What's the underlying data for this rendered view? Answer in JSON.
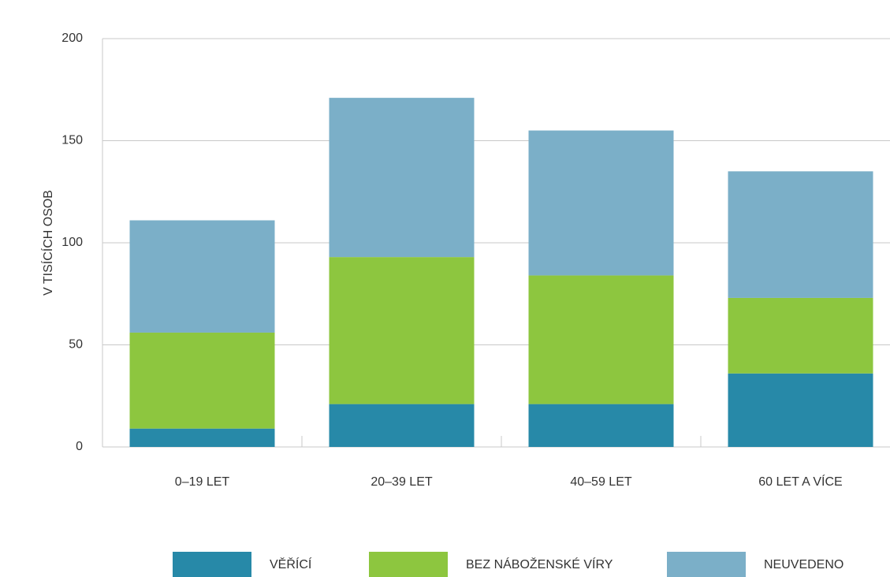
{
  "chart_data": {
    "type": "stacked_bar",
    "y_label": "V TISÍCÍCH OSOB",
    "categories": [
      "0–19 LET",
      "20–39 LET",
      "40–59 LET",
      "60 LET A VÍCE"
    ],
    "series": [
      {
        "name": "VĚŘÍCÍ",
        "color": "#2789a8",
        "values": [
          9,
          21,
          21,
          36
        ]
      },
      {
        "name": "BEZ NÁBOŽENSKÉ VÍRY",
        "color": "#8dc63f",
        "values": [
          47,
          72,
          63,
          37
        ]
      },
      {
        "name": "NEUVEDENO",
        "color": "#7bafc8",
        "values": [
          55,
          78,
          71,
          62
        ]
      }
    ],
    "ylim": [
      0,
      200
    ],
    "yticks": [
      0,
      50,
      100,
      150,
      200
    ],
    "grid": true,
    "legend": "bottom"
  }
}
